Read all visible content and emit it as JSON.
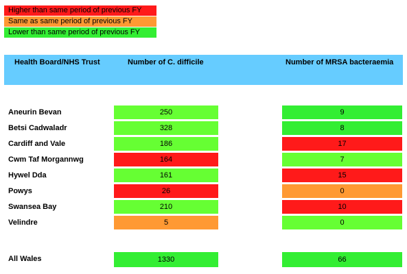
{
  "legend": [
    {
      "label": "Higher than same period of previous FY",
      "color": "#FF1A1A"
    },
    {
      "label": "Same as same period of previous FY",
      "color": "#FF9933"
    },
    {
      "label": "Lower than same period of previous FY",
      "color": "#33EE33"
    }
  ],
  "header": {
    "col0": "Health Board/NHS Trust",
    "col1": "Number of C. difficile",
    "col2": "Number of MRSA bacteraemia"
  },
  "rows": [
    {
      "name": "Aneurin Bevan",
      "cdiff": "250",
      "cdiff_color": "#66FF33",
      "mrsa": "9",
      "mrsa_color": "#33EE33"
    },
    {
      "name": "Betsi Cadwaladr",
      "cdiff": "328",
      "cdiff_color": "#66FF33",
      "mrsa": "8",
      "mrsa_color": "#33EE33"
    },
    {
      "name": "Cardiff and Vale",
      "cdiff": "186",
      "cdiff_color": "#66FF33",
      "mrsa": "17",
      "mrsa_color": "#FF1A1A"
    },
    {
      "name": "Cwm Taf Morgannwg",
      "cdiff": "164",
      "cdiff_color": "#FF1A1A",
      "mrsa": "7",
      "mrsa_color": "#66FF33"
    },
    {
      "name": "Hywel Dda",
      "cdiff": "161",
      "cdiff_color": "#66FF33",
      "mrsa": "15",
      "mrsa_color": "#FF1A1A"
    },
    {
      "name": "Powys",
      "cdiff": "26",
      "cdiff_color": "#FF1A1A",
      "mrsa": "0",
      "mrsa_color": "#FF9933"
    },
    {
      "name": "Swansea Bay",
      "cdiff": "210",
      "cdiff_color": "#66FF33",
      "mrsa": "10",
      "mrsa_color": "#FF1A1A"
    },
    {
      "name": "Velindre",
      "cdiff": "5",
      "cdiff_color": "#FF9933",
      "mrsa": "0",
      "mrsa_color": "#66FF33"
    }
  ],
  "total": {
    "name": "All Wales",
    "cdiff": "1330",
    "cdiff_color": "#33EE33",
    "mrsa": "66",
    "mrsa_color": "#33EE33"
  }
}
